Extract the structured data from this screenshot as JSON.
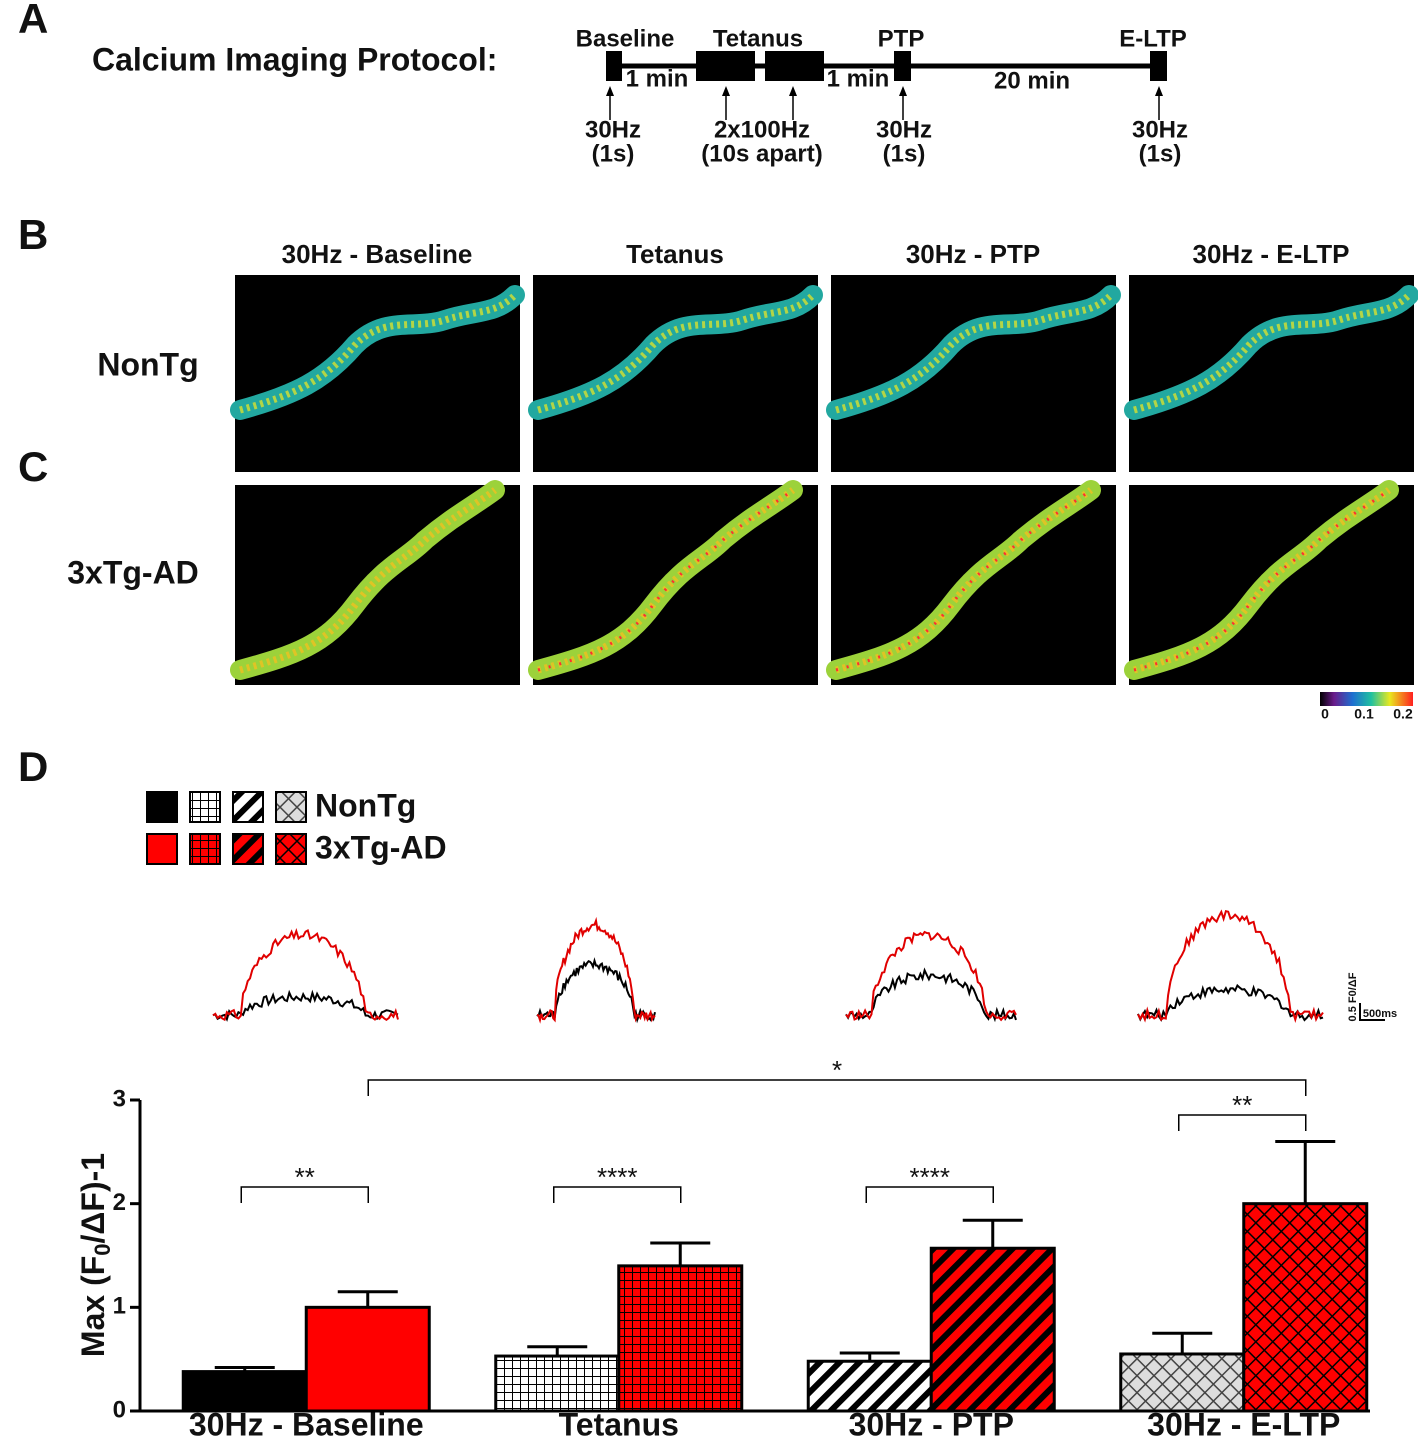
{
  "panel_a": {
    "letter": "A",
    "title": "Calcium Imaging Protocol:",
    "phases": [
      "Baseline",
      "Tetanus",
      "PTP",
      "E-LTP"
    ],
    "intervals": [
      "1 min",
      "1 min",
      "20 min"
    ],
    "stimuli": [
      {
        "freq": "30Hz",
        "duration": "(1s)"
      },
      {
        "freq": "2x100Hz",
        "duration": "(10s apart)"
      },
      {
        "freq": "30Hz",
        "duration": "(1s)"
      },
      {
        "freq": "30Hz",
        "duration": "(1s)"
      }
    ]
  },
  "panel_b": {
    "letter": "B",
    "row_label": "NonTg"
  },
  "panel_c": {
    "letter": "C",
    "row_label": "3xTg-AD"
  },
  "columns": [
    "30Hz - Baseline",
    "Tetanus",
    "30Hz - PTP",
    "30Hz - E-LTP"
  ],
  "colorbar": {
    "labels": [
      "0",
      "0.1",
      "0.2"
    ]
  },
  "panel_d": {
    "letter": "D",
    "scale_y": "0.5 F0/ΔF",
    "scale_x": "500ms"
  },
  "chart_data": {
    "type": "bar",
    "y_label": {
      "prefix": "Max (F",
      "sub": "0",
      "suffix": "/ΔF)-1"
    },
    "categories": [
      "30Hz - Baseline",
      "Tetanus",
      "30Hz - PTP",
      "30Hz - E-LTP"
    ],
    "patterns": [
      "solid",
      "grid",
      "diagonal",
      "crosshatch"
    ],
    "series": [
      {
        "name": "NonTg",
        "color": "#000000",
        "values": [
          0.38,
          0.53,
          0.48,
          0.55
        ],
        "errors": [
          0.04,
          0.09,
          0.08,
          0.2
        ]
      },
      {
        "name": "3xTg-AD",
        "color": "#ff0000",
        "values": [
          1.0,
          1.4,
          1.57,
          2.0
        ],
        "errors": [
          0.15,
          0.22,
          0.27,
          0.6
        ]
      }
    ],
    "annotations": [
      "**",
      "****",
      "****",
      "**",
      "*"
    ],
    "ylim": [
      0,
      3
    ],
    "yticks": [
      0,
      1,
      2,
      3
    ]
  }
}
